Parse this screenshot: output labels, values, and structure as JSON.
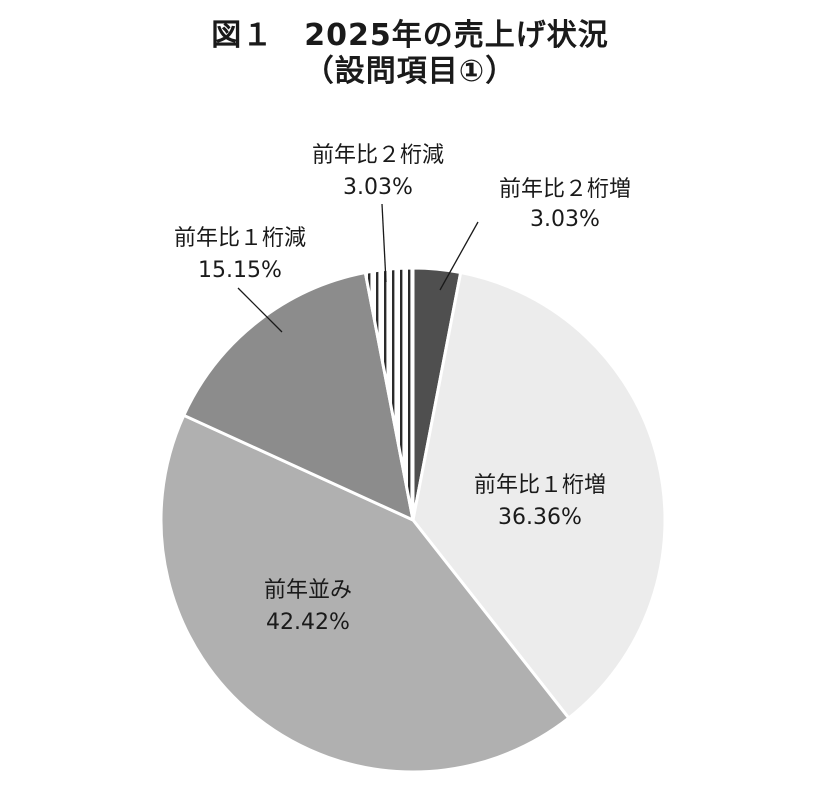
{
  "title": {
    "line1": "図１　2025年の売上げ状況",
    "line2": "（設問項目①）"
  },
  "chart_data": {
    "type": "pie",
    "start": "12 o'clock",
    "direction": "clockwise",
    "slices": [
      {
        "name": "前年比２桁増",
        "value": 3.03,
        "label": "3.03%",
        "fill": "#4f4f4f",
        "pattern": "solid"
      },
      {
        "name": "前年比１桁増",
        "value": 36.36,
        "label": "36.36%",
        "fill": "#ececec",
        "pattern": "solid"
      },
      {
        "name": "前年並み",
        "value": 42.42,
        "label": "42.42%",
        "fill": "#b0b0b0",
        "pattern": "solid"
      },
      {
        "name": "前年比１桁減",
        "value": 15.15,
        "label": "15.15%",
        "fill": "#8c8c8c",
        "pattern": "solid"
      },
      {
        "name": "前年比２桁減",
        "value": 3.03,
        "label": "3.03%",
        "fill": "#ffffff",
        "pattern": "vertical-stripes"
      }
    ]
  }
}
